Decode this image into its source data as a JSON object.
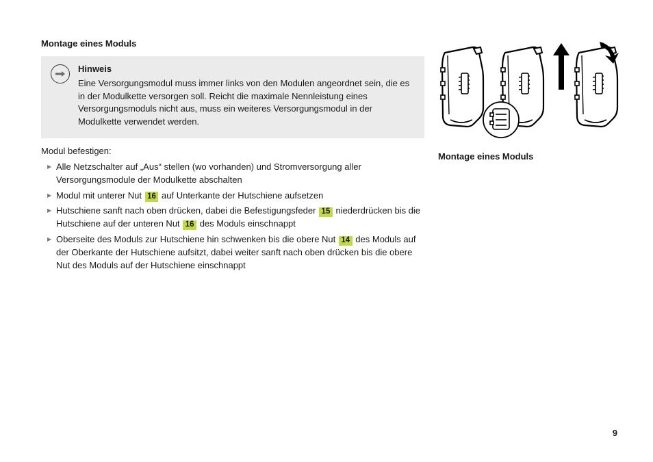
{
  "header": {
    "title": "Montage eines Moduls"
  },
  "notice": {
    "title": "Hinweis",
    "body": "Eine Versorgungsmodul muss immer links von den Modulen angeordnet sein, die es in der Modulkette versorgen soll. Reicht die maximale Nennleistung eines Versorgungsmoduls nicht aus, muss ein weiteres Versorgungsmodul in der Modulkette verwendet werden."
  },
  "intro": "Modul befestigen:",
  "steps": [
    {
      "segments": [
        {
          "t": "text",
          "v": "Alle Netzschalter auf „Aus“ stellen (wo vorhanden) und Stromversorgung aller Versorgungsmodule der Modulkette abschalten"
        }
      ]
    },
    {
      "segments": [
        {
          "t": "text",
          "v": "Modul mit unterer Nut "
        },
        {
          "t": "ref",
          "v": "16"
        },
        {
          "t": "text",
          "v": " auf Unterkante der Hutschiene aufsetzen"
        }
      ]
    },
    {
      "segments": [
        {
          "t": "text",
          "v": "Hutschiene sanft nach oben drücken, dabei die Befestigungsfeder "
        },
        {
          "t": "ref",
          "v": "15"
        },
        {
          "t": "text",
          "v": " niederdrücken bis die Hutschiene auf der unteren Nut "
        },
        {
          "t": "ref",
          "v": "16"
        },
        {
          "t": "text",
          "v": " des Moduls einschnappt"
        }
      ]
    },
    {
      "segments": [
        {
          "t": "text",
          "v": "Oberseite des Moduls zur Hutschiene hin schwenken bis die obere Nut "
        },
        {
          "t": "ref",
          "v": "14"
        },
        {
          "t": "text",
          "v": " des Moduls auf der Oberkante der Hutschiene aufsitzt, dabei weiter sanft nach oben drücken bis die obere Nut des Moduls auf der Hutschiene einschnappt"
        }
      ]
    }
  ],
  "figure": {
    "caption": "Montage eines Moduls"
  },
  "colors": {
    "ref_bg": "#c3d94a",
    "notice_bg": "#ebebeb",
    "bullet": "#7a7a7a",
    "text": "#1a1a1a"
  },
  "pageNumber": "9"
}
